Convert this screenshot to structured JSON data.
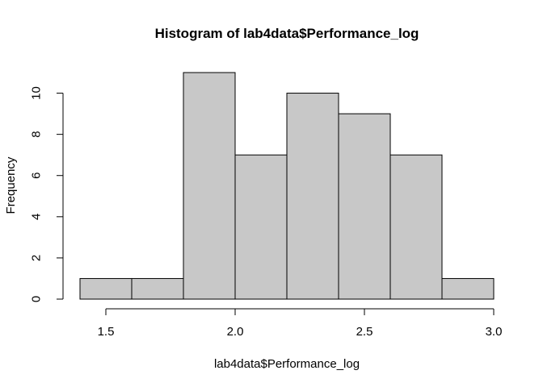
{
  "chart_data": {
    "type": "bar",
    "title": "Histogram of lab4data$Performance_log",
    "xlabel": "lab4data$Performance_log",
    "ylabel": "Frequency",
    "bins": [
      {
        "start": 1.4,
        "end": 1.6,
        "count": 1
      },
      {
        "start": 1.6,
        "end": 1.8,
        "count": 1
      },
      {
        "start": 1.8,
        "end": 2.0,
        "count": 11
      },
      {
        "start": 2.0,
        "end": 2.2,
        "count": 7
      },
      {
        "start": 2.2,
        "end": 2.4,
        "count": 10
      },
      {
        "start": 2.4,
        "end": 2.6,
        "count": 9
      },
      {
        "start": 2.6,
        "end": 2.8,
        "count": 7
      },
      {
        "start": 2.8,
        "end": 3.0,
        "count": 1
      }
    ],
    "xlim": [
      1.4,
      3.0
    ],
    "ylim": [
      0,
      11
    ],
    "x_ticks": [
      {
        "value": 1.5,
        "label": "1.5"
      },
      {
        "value": 2.0,
        "label": "2.0"
      },
      {
        "value": 2.5,
        "label": "2.5"
      },
      {
        "value": 3.0,
        "label": "3.0"
      }
    ],
    "y_ticks": [
      {
        "value": 0,
        "label": "0"
      },
      {
        "value": 2,
        "label": "2"
      },
      {
        "value": 4,
        "label": "4"
      },
      {
        "value": 6,
        "label": "6"
      },
      {
        "value": 8,
        "label": "8"
      },
      {
        "value": 10,
        "label": "10"
      }
    ],
    "bar_color": "#c8c8c8",
    "grid": false,
    "legend": "none"
  }
}
